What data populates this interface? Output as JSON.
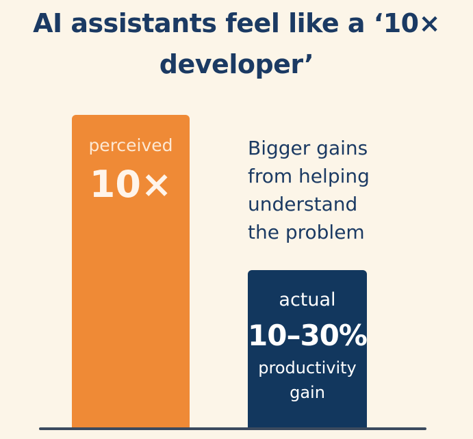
{
  "header": {
    "title": "AI assistants feel like a ‘10× developer’"
  },
  "bars": [
    {
      "label": "perceived",
      "value_text": "10×"
    },
    {
      "label": "actual",
      "value_text": "10–30%",
      "note": "productivity gain"
    }
  ],
  "annotation": "Bigger gains from helping understand the problem"
}
